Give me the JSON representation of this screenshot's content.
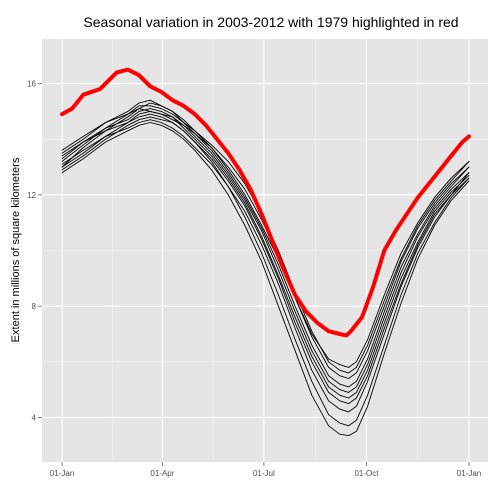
{
  "chart_data": {
    "type": "line",
    "title": "Seasonal variation in 2003-2012 with 1979 highlighted in red",
    "xlabel": "",
    "ylabel": "Extent in millions of square kilometers",
    "x_ticks": [
      {
        "label": "01-Jan",
        "day": 1
      },
      {
        "label": "01-Apr",
        "day": 91
      },
      {
        "label": "01-Jul",
        "day": 182
      },
      {
        "label": "01-Oct",
        "day": 274
      },
      {
        "label": "01-Jan",
        "day": 366
      }
    ],
    "y_ticks": [
      4,
      8,
      12,
      16
    ],
    "xlim": [
      -17,
      383
    ],
    "ylim": [
      2.4,
      17.6
    ],
    "grid": true,
    "legend": "none",
    "highlight_color": "#ff0000",
    "base_color": "#000000",
    "panel_color": "#e5e5e5",
    "grid_color": "#ffffff",
    "series": [
      {
        "highlight": true,
        "x": [
          1,
          10,
          20,
          35,
          50,
          60,
          70,
          80,
          90,
          100,
          110,
          120,
          130,
          140,
          150,
          160,
          170,
          180,
          190,
          200,
          210,
          220,
          230,
          240,
          250,
          256,
          260,
          270,
          280,
          290,
          300,
          310,
          320,
          330,
          340,
          350,
          360,
          366
        ],
        "y": [
          14.9,
          15.1,
          15.6,
          15.8,
          16.4,
          16.5,
          16.3,
          15.9,
          15.7,
          15.4,
          15.2,
          14.9,
          14.5,
          14.0,
          13.5,
          12.9,
          12.2,
          11.3,
          10.3,
          9.3,
          8.4,
          7.8,
          7.4,
          7.1,
          7.0,
          6.95,
          7.1,
          7.6,
          8.7,
          10.0,
          10.7,
          11.3,
          11.9,
          12.4,
          12.9,
          13.4,
          13.9,
          14.1
        ]
      },
      {
        "x": [
          1,
          20,
          40,
          60,
          70,
          80,
          90,
          100,
          110,
          120,
          135,
          150,
          165,
          180,
          195,
          210,
          225,
          240,
          250,
          258,
          265,
          275,
          290,
          305,
          320,
          335,
          350,
          366
        ],
        "y": [
          13.3,
          13.9,
          14.4,
          14.9,
          15.2,
          15.2,
          15.1,
          14.9,
          14.6,
          14.3,
          13.8,
          13.2,
          12.4,
          11.3,
          10.0,
          8.5,
          7.1,
          6.0,
          5.7,
          5.6,
          5.8,
          6.6,
          8.2,
          9.7,
          10.9,
          11.8,
          12.5,
          13.2
        ]
      },
      {
        "x": [
          1,
          20,
          40,
          60,
          70,
          80,
          90,
          100,
          110,
          120,
          135,
          150,
          165,
          180,
          195,
          210,
          225,
          240,
          250,
          258,
          265,
          275,
          290,
          305,
          320,
          335,
          350,
          366
        ],
        "y": [
          13.0,
          13.7,
          14.3,
          14.8,
          15.1,
          15.0,
          14.9,
          14.8,
          14.5,
          14.2,
          13.7,
          13.0,
          12.2,
          11.1,
          9.8,
          8.3,
          6.9,
          5.8,
          5.5,
          5.4,
          5.6,
          6.4,
          8.0,
          9.6,
          10.8,
          11.7,
          12.4,
          13.0
        ]
      },
      {
        "x": [
          1,
          20,
          40,
          60,
          70,
          80,
          90,
          100,
          110,
          120,
          135,
          150,
          165,
          180,
          195,
          210,
          225,
          240,
          250,
          258,
          265,
          275,
          290,
          305,
          320,
          335,
          350,
          366
        ],
        "y": [
          13.5,
          14.0,
          14.6,
          15.0,
          15.3,
          15.4,
          15.2,
          15.0,
          14.6,
          14.2,
          13.6,
          12.8,
          11.9,
          10.8,
          9.5,
          8.0,
          6.6,
          5.5,
          5.2,
          5.1,
          5.3,
          6.1,
          7.8,
          9.4,
          10.6,
          11.6,
          12.3,
          13.0
        ]
      },
      {
        "x": [
          1,
          20,
          40,
          60,
          70,
          80,
          90,
          100,
          110,
          120,
          135,
          150,
          165,
          180,
          195,
          210,
          225,
          240,
          250,
          258,
          265,
          275,
          290,
          305,
          320,
          335,
          350,
          366
        ],
        "y": [
          13.1,
          13.6,
          14.1,
          14.6,
          14.9,
          15.0,
          14.9,
          14.7,
          14.5,
          14.1,
          13.5,
          12.7,
          11.8,
          10.7,
          9.3,
          7.8,
          6.4,
          5.3,
          5.0,
          4.9,
          5.1,
          5.9,
          7.6,
          9.2,
          10.5,
          11.5,
          12.2,
          12.8
        ]
      },
      {
        "x": [
          1,
          20,
          40,
          60,
          70,
          80,
          90,
          100,
          110,
          120,
          135,
          150,
          165,
          180,
          195,
          210,
          225,
          240,
          250,
          258,
          265,
          275,
          290,
          305,
          320,
          335,
          350,
          366
        ],
        "y": [
          13.2,
          13.8,
          14.4,
          14.7,
          15.0,
          15.1,
          15.0,
          14.8,
          14.4,
          14.0,
          13.4,
          12.6,
          11.7,
          10.5,
          9.1,
          7.6,
          6.2,
          5.1,
          4.8,
          4.7,
          4.9,
          5.7,
          7.4,
          9.0,
          10.3,
          11.4,
          12.1,
          12.7
        ]
      },
      {
        "x": [
          1,
          20,
          40,
          60,
          70,
          80,
          90,
          100,
          110,
          120,
          135,
          150,
          165,
          180,
          195,
          210,
          225,
          240,
          250,
          258,
          265,
          275,
          290,
          305,
          320,
          335,
          350,
          366
        ],
        "y": [
          12.9,
          13.4,
          14.0,
          14.5,
          14.7,
          14.8,
          14.7,
          14.6,
          14.3,
          13.9,
          13.3,
          12.5,
          11.6,
          10.4,
          9.0,
          7.4,
          6.0,
          4.9,
          4.6,
          4.5,
          4.7,
          5.5,
          7.2,
          8.8,
          10.2,
          11.3,
          12.0,
          12.6
        ]
      },
      {
        "x": [
          1,
          20,
          40,
          60,
          70,
          80,
          90,
          100,
          110,
          120,
          135,
          150,
          165,
          180,
          195,
          210,
          225,
          240,
          250,
          258,
          265,
          275,
          290,
          305,
          320,
          335,
          350,
          366
        ],
        "y": [
          13.0,
          13.5,
          14.1,
          14.4,
          14.6,
          14.7,
          14.6,
          14.4,
          14.1,
          13.7,
          13.1,
          12.3,
          11.4,
          10.2,
          8.8,
          7.2,
          5.7,
          4.6,
          4.3,
          4.2,
          4.4,
          5.3,
          7.0,
          8.7,
          10.1,
          11.2,
          12.0,
          12.8
        ]
      },
      {
        "x": [
          1,
          20,
          40,
          60,
          70,
          80,
          90,
          100,
          110,
          120,
          135,
          150,
          165,
          180,
          195,
          210,
          225,
          240,
          250,
          258,
          265,
          275,
          290,
          305,
          320,
          335,
          350,
          366
        ],
        "y": [
          13.4,
          13.9,
          14.3,
          14.6,
          14.8,
          14.9,
          14.8,
          14.6,
          14.3,
          13.9,
          13.2,
          12.3,
          11.2,
          9.9,
          8.4,
          6.8,
          5.3,
          4.1,
          3.8,
          3.7,
          3.9,
          4.8,
          6.6,
          8.4,
          9.9,
          11.0,
          11.9,
          12.6
        ]
      },
      {
        "x": [
          1,
          20,
          40,
          60,
          70,
          80,
          90,
          100,
          110,
          120,
          135,
          150,
          165,
          180,
          195,
          210,
          225,
          240,
          250,
          258,
          265,
          275,
          290,
          305,
          320,
          335,
          350,
          366
        ],
        "y": [
          12.8,
          13.3,
          13.9,
          14.3,
          14.5,
          14.6,
          14.5,
          14.3,
          14.0,
          13.6,
          12.9,
          12.0,
          10.9,
          9.6,
          8.0,
          6.4,
          4.8,
          3.7,
          3.4,
          3.35,
          3.5,
          4.4,
          6.3,
          8.1,
          9.7,
          10.9,
          11.8,
          12.5
        ]
      },
      {
        "x": [
          1,
          20,
          40,
          60,
          70,
          80,
          90,
          100,
          110,
          120,
          135,
          150,
          165,
          180,
          195,
          210,
          225,
          240,
          250,
          258,
          265,
          275,
          290,
          305,
          320,
          335,
          350,
          366
        ],
        "y": [
          13.6,
          14.1,
          14.6,
          14.9,
          15.1,
          15.3,
          15.2,
          15.0,
          14.7,
          14.3,
          13.7,
          12.9,
          12.0,
          10.9,
          9.7,
          8.3,
          7.0,
          6.1,
          5.9,
          5.8,
          6.0,
          6.8,
          8.4,
          9.9,
          11.0,
          11.9,
          12.6,
          13.2
        ]
      }
    ]
  }
}
